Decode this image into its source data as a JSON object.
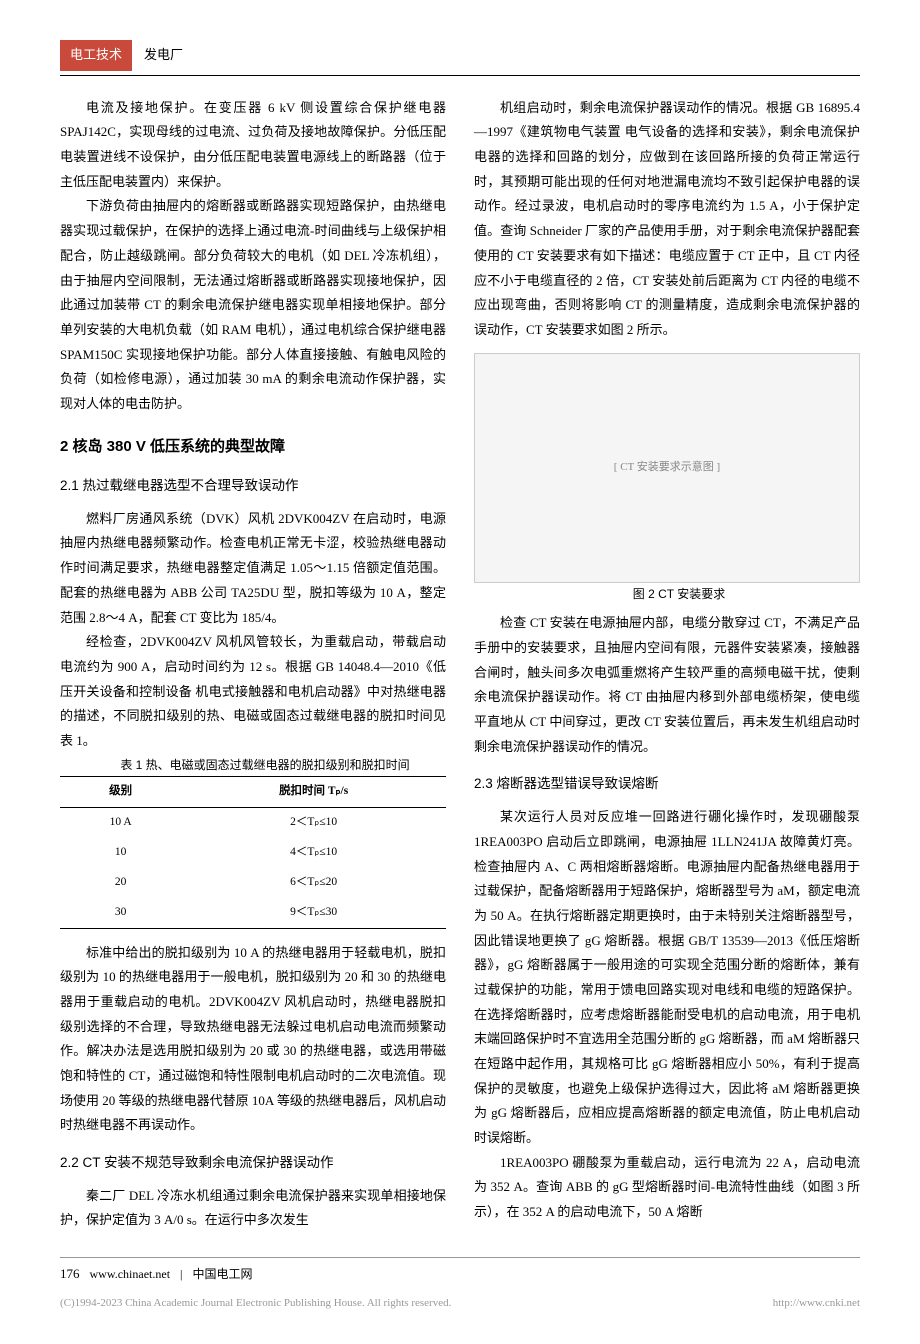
{
  "header": {
    "tag": "电工技术",
    "sub": "发电厂"
  },
  "col1": {
    "p1": "电流及接地保护。在变压器 6 kV 侧设置综合保护继电器 SPAJ142C，实现母线的过电流、过负荷及接地故障保护。分低压配电装置进线不设保护，由分低压配电装置电源线上的断路器（位于主低压配电装置内）来保护。",
    "p2": "下游负荷由抽屉内的熔断器或断路器实现短路保护，由热继电器实现过载保护，在保护的选择上通过电流-时间曲线与上级保护相配合，防止越级跳闸。部分负荷较大的电机（如 DEL 冷冻机组），由于抽屉内空间限制，无法通过熔断器或断路器实现接地保护，因此通过加装带 CT 的剩余电流保护继电器实现单相接地保护。部分单列安装的大电机负载（如 RAM 电机），通过电机综合保护继电器 SPAM150C 实现接地保护功能。部分人体直接接触、有触电风险的负荷（如检修电源），通过加装 30 mA 的剩余电流动作保护器，实现对人体的电击防护。",
    "h2": "2 核岛 380 V 低压系统的典型故障",
    "h3_1": "2.1 热过载继电器选型不合理导致误动作",
    "p3": "燃料厂房通风系统（DVK）风机 2DVK004ZV 在启动时，电源抽屉内热继电器频繁动作。检查电机正常无卡涩，校验热继电器动作时间满足要求，热继电器整定值满足 1.05～1.15 倍额定值范围。配套的热继电器为 ABB 公司 TA25DU 型，脱扣等级为 10 A，整定范围 2.8～4 A，配套 CT 变比为 185/4。",
    "p4": "经检查，2DVK004ZV 风机风管较长，为重载启动，带载启动电流约为 900 A，启动时间约为 12 s。根据 GB 14048.4—2010《低压开关设备和控制设备 机电式接触器和电机启动器》中对热继电器的描述，不同脱扣级别的热、电磁或固态过载继电器的脱扣时间见表 1。",
    "table1": {
      "title": "表 1 热、电磁或固态过载继电器的脱扣级别和脱扣时间",
      "col_headers": [
        "级别",
        "脱扣时间 Tₚ/s"
      ],
      "rows": [
        [
          "10 A",
          "2＜Tₚ≤10"
        ],
        [
          "10",
          "4＜Tₚ≤10"
        ],
        [
          "20",
          "6＜Tₚ≤20"
        ],
        [
          "30",
          "9＜Tₚ≤30"
        ]
      ]
    },
    "p5": "标准中给出的脱扣级别为 10 A 的热继电器用于轻载电机，脱扣级别为 10 的热继电器用于一般电机，脱扣级别为 20 和 30 的热继电器用于重载启动的电机。2DVK004ZV 风机启动时，热继电器脱扣级别选择的不合理，导致热继电器无法躲过电机启动电流而频繁动作。解决办法是选用脱扣级别为 20 或 30 的热继电器，或选用带磁饱和特性的 CT，通过磁饱和特性限制电机启动时的二次电流值。现场使用 20 等级的热继电器代替原 10A 等级的热继电器后，风机启动时热继电器不再误动作。",
    "h3_2": "2.2 CT 安装不规范导致剩余电流保护器误动作",
    "p6": "秦二厂 DEL 冷冻水机组通过剩余电流保护器来实现单相接地保护，保护定值为 3 A/0 s。在运行中多次发生"
  },
  "col2": {
    "p1": "机组启动时，剩余电流保护器误动作的情况。根据 GB 16895.4—1997《建筑物电气装置 电气设备的选择和安装》，剩余电流保护电器的选择和回路的划分，应做到在该回路所接的负荷正常运行时，其预期可能出现的任何对地泄漏电流均不致引起保护电器的误动作。经过录波，电机启动时的零序电流约为 1.5 A，小于保护定值。查询 Schneider 厂家的产品使用手册，对于剩余电流保护器配套使用的 CT 安装要求有如下描述：电缆应置于 CT 正中，且 CT 内径应不小于电缆直径的 2 倍，CT 安装处前后距离为 CT 内径的电缆不应出现弯曲，否则将影响 CT 的测量精度，造成剩余电流保护器的误动作，CT 安装要求如图 2 所示。",
    "fig2": {
      "placeholder": "[ CT 安装要求示意图 ]",
      "caption": "图 2 CT 安装要求"
    },
    "p2": "检查 CT 安装在电源抽屉内部，电缆分散穿过 CT，不满足产品手册中的安装要求，且抽屉内空间有限，元器件安装紧凑，接触器合闸时，触头间多次电弧重燃将产生较严重的高频电磁干扰，使剩余电流保护器误动作。将 CT 由抽屉内移到外部电缆桥架，使电缆平直地从 CT 中间穿过，更改 CT 安装位置后，再未发生机组启动时剩余电流保护器误动作的情况。",
    "h3_3": "2.3 熔断器选型错误导致误熔断",
    "p3": "某次运行人员对反应堆一回路进行硼化操作时，发现硼酸泵 1REA003PO 启动后立即跳闸，电源抽屉 1LLN241JA 故障黄灯亮。检查抽屉内 A、C 两相熔断器熔断。电源抽屉内配备热继电器用于过载保护，配备熔断器用于短路保护，熔断器型号为 aM，额定电流为 50 A。在执行熔断器定期更换时，由于未特别关注熔断器型号，因此错误地更换了 gG 熔断器。根据 GB/T 13539—2013《低压熔断器》，gG 熔断器属于一般用途的可实现全范围分断的熔断体，兼有过载保护的功能，常用于馈电回路实现对电线和电缆的短路保护。在选择熔断器时，应考虑熔断器能耐受电机的启动电流，用于电机末端回路保护时不宜选用全范围分断的 gG 熔断器，而 aM 熔断器只在短路中起作用，其规格可比 gG 熔断器相应小 50%，有利于提高保护的灵敏度，也避免上级保护选得过大，因此将 aM 熔断器更换为 gG 熔断器后，应相应提高熔断器的额定电流值，防止电机启动时误熔断。",
    "p4": "1REA003PO 硼酸泵为重载启动，运行电流为 22 A，启动电流为 352 A。查询 ABB 的 gG 型熔断器时间-电流特性曲线（如图 3 所示），在 352 A 的启动电流下，50 A 熔断"
  },
  "footer": {
    "page": "176",
    "site": "www.chinaet.net",
    "siteName": "中国电工网",
    "copyright": "(C)1994-2023 China Academic Journal Electronic Publishing House. All rights reserved.",
    "url": "http://www.cnki.net"
  }
}
